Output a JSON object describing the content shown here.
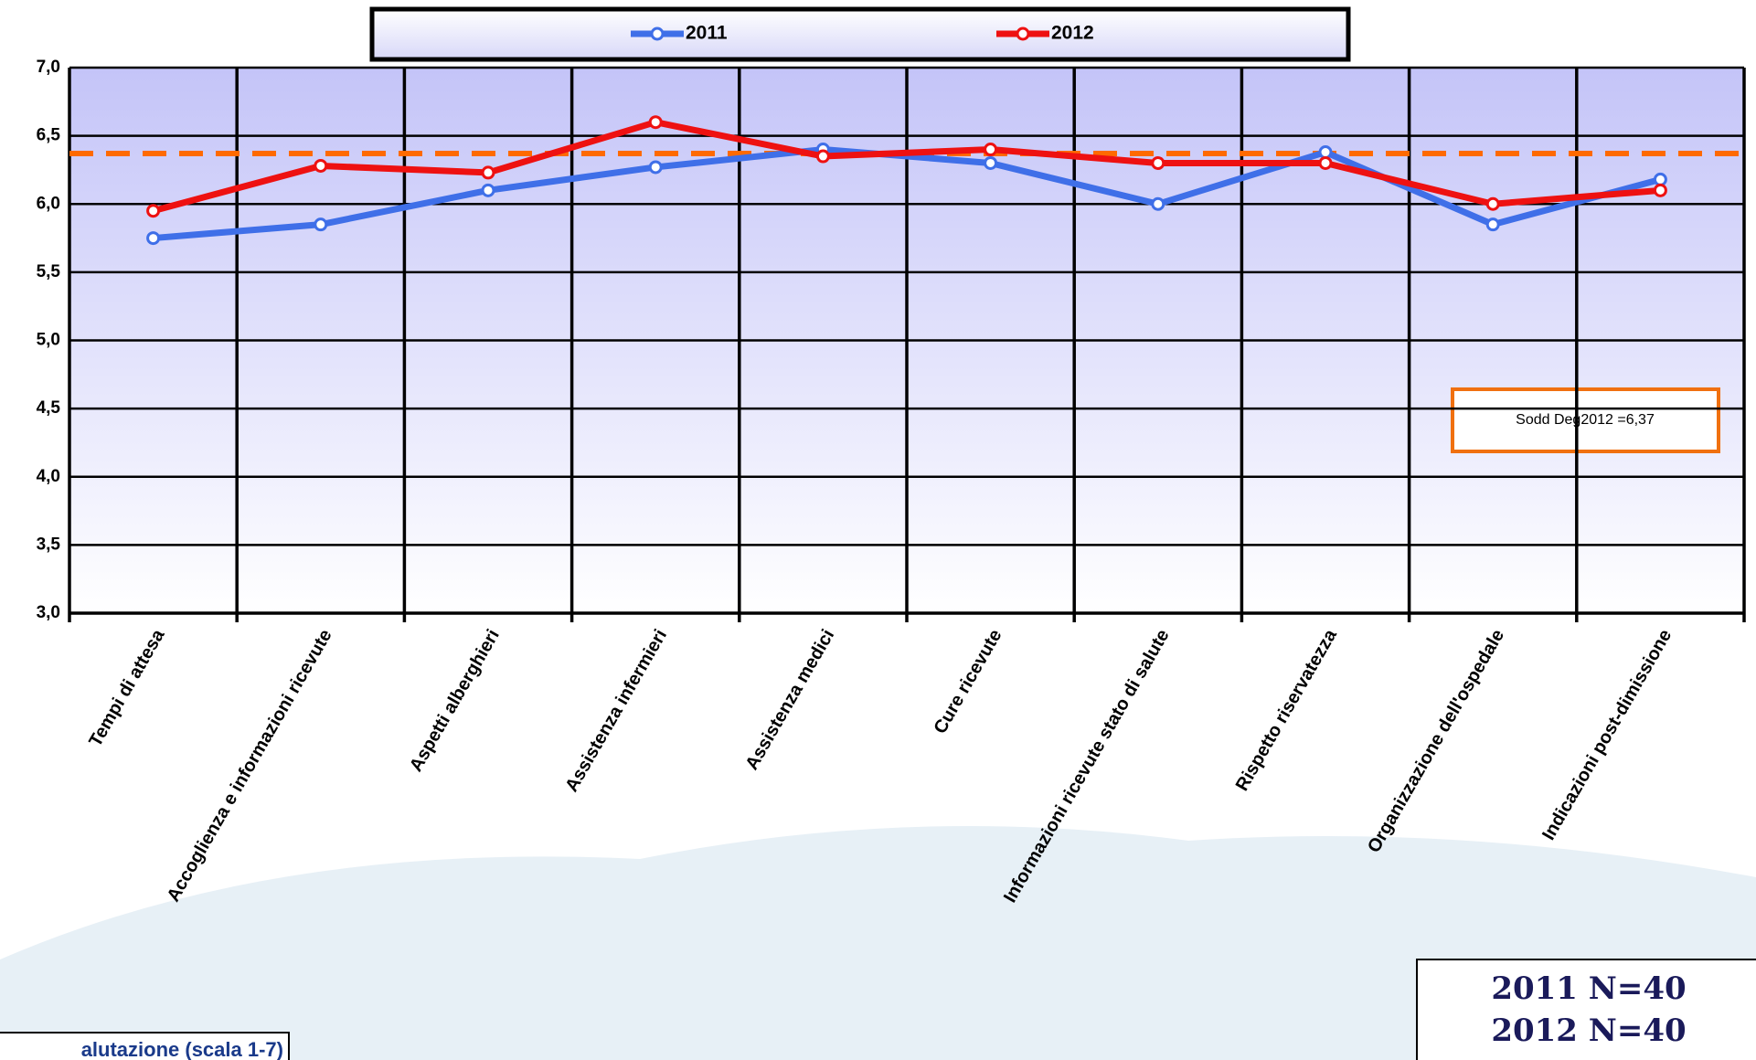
{
  "chart_data": {
    "type": "line",
    "categories": [
      "Tempi di attesa",
      "Accoglienza e informazioni ricevute",
      "Aspetti alberghieri",
      "Assistenza infermieri",
      "Assistenza medici",
      "Cure ricevute",
      "Informazioni ricevute stato di salute",
      "Rispetto riservatezza",
      "Organizzazione dell'ospedale",
      "Indicazioni post-dimissione"
    ],
    "series": [
      {
        "name": "2011",
        "color": "#3f6fe8",
        "values": [
          5.75,
          5.85,
          6.1,
          6.27,
          6.4,
          6.3,
          6.0,
          6.38,
          5.85,
          6.18
        ]
      },
      {
        "name": "2012",
        "color": "#ee1111",
        "values": [
          5.95,
          6.28,
          6.23,
          6.6,
          6.35,
          6.4,
          6.3,
          6.3,
          6.0,
          6.1
        ]
      }
    ],
    "ylim": [
      3,
      7
    ],
    "yticks": [
      {
        "value": 3,
        "label": "3,0"
      },
      {
        "value": 3.5,
        "label": "3,5"
      },
      {
        "value": 4,
        "label": "4,0"
      },
      {
        "value": 4.5,
        "label": "4,5"
      },
      {
        "value": 5,
        "label": "5,0"
      },
      {
        "value": 5.5,
        "label": "5,5"
      },
      {
        "value": 6,
        "label": "6,0"
      },
      {
        "value": 6.5,
        "label": "6,5"
      },
      {
        "value": 7,
        "label": "7,0"
      }
    ],
    "grid": true,
    "reference_line": {
      "value": 6.37,
      "color": "#ff6a00",
      "label": "Sodd Deg2012 =6,37"
    },
    "annotations": [
      "2011 N=40",
      "2012 N=40",
      "alutazione (scala 1-7)"
    ]
  }
}
